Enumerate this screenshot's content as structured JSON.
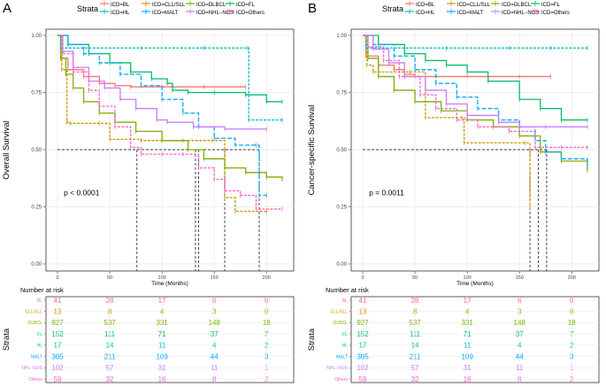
{
  "panels": [
    {
      "letter": "A",
      "ylabel": "Overall Survival",
      "pvalue": "p < 0.0001",
      "series": [
        {
          "key": "BL",
          "values": [
            [
              0,
              1
            ],
            [
              3,
              0.9
            ],
            [
              10,
              0.85
            ],
            [
              25,
              0.82
            ],
            [
              40,
              0.79
            ],
            [
              55,
              0.78
            ],
            [
              70,
              0.775
            ],
            [
              100,
              0.775
            ],
            [
              140,
              0.775
            ],
            [
              180,
              0.775
            ]
          ]
        },
        {
          "key": "CLL/SLL",
          "values": [
            [
              0,
              1
            ],
            [
              4,
              0.85
            ],
            [
              9,
              0.62
            ],
            [
              12,
              0.615
            ],
            [
              40,
              0.615
            ],
            [
              50,
              0.545
            ],
            [
              80,
              0.54
            ],
            [
              120,
              0.54
            ],
            [
              148,
              0.54
            ],
            [
              160,
              0.29
            ],
            [
              170,
              0.23
            ],
            [
              200,
              0.23
            ]
          ]
        },
        {
          "key": "DLBCL",
          "values": [
            [
              0,
              1
            ],
            [
              3,
              0.9
            ],
            [
              8,
              0.83
            ],
            [
              15,
              0.77
            ],
            [
              25,
              0.71
            ],
            [
              40,
              0.66
            ],
            [
              55,
              0.62
            ],
            [
              75,
              0.58
            ],
            [
              100,
              0.54
            ],
            [
              125,
              0.5
            ],
            [
              140,
              0.46
            ],
            [
              160,
              0.42
            ],
            [
              180,
              0.4
            ],
            [
              200,
              0.38
            ],
            [
              215,
              0.37
            ]
          ]
        },
        {
          "key": "FL",
          "values": [
            [
              0,
              1
            ],
            [
              10,
              0.96
            ],
            [
              30,
              0.92
            ],
            [
              50,
              0.88
            ],
            [
              70,
              0.84
            ],
            [
              90,
              0.81
            ],
            [
              105,
              0.79
            ],
            [
              110,
              0.76
            ],
            [
              125,
              0.75
            ],
            [
              150,
              0.75
            ],
            [
              180,
              0.74
            ],
            [
              200,
              0.71
            ],
            [
              215,
              0.71
            ]
          ]
        },
        {
          "key": "HL",
          "values": [
            [
              0,
              1
            ],
            [
              3,
              0.945
            ],
            [
              80,
              0.945
            ],
            [
              140,
              0.945
            ],
            [
              182,
              0.945
            ],
            [
              183,
              0.63
            ],
            [
              215,
              0.63
            ]
          ]
        },
        {
          "key": "MALT",
          "values": [
            [
              0,
              1
            ],
            [
              10,
              0.96
            ],
            [
              25,
              0.92
            ],
            [
              40,
              0.88
            ],
            [
              60,
              0.83
            ],
            [
              80,
              0.78
            ],
            [
              100,
              0.72
            ],
            [
              120,
              0.66
            ],
            [
              135,
              0.6
            ],
            [
              150,
              0.55
            ],
            [
              170,
              0.52
            ],
            [
              190,
              0.52
            ],
            [
              193,
              0.3
            ],
            [
              200,
              0.3
            ]
          ]
        },
        {
          "key": "NHL-NOS",
          "values": [
            [
              0,
              1
            ],
            [
              5,
              0.93
            ],
            [
              15,
              0.86
            ],
            [
              30,
              0.8
            ],
            [
              45,
              0.77
            ],
            [
              60,
              0.72
            ],
            [
              75,
              0.68
            ],
            [
              95,
              0.63
            ],
            [
              105,
              0.62
            ],
            [
              130,
              0.6
            ],
            [
              160,
              0.59
            ],
            [
              200,
              0.59
            ]
          ]
        },
        {
          "key": "Others",
          "values": [
            [
              0,
              1
            ],
            [
              5,
              0.92
            ],
            [
              15,
              0.84
            ],
            [
              30,
              0.76
            ],
            [
              40,
              0.69
            ],
            [
              55,
              0.6
            ],
            [
              70,
              0.51
            ],
            [
              80,
              0.48
            ],
            [
              100,
              0.48
            ],
            [
              120,
              0.48
            ],
            [
              135,
              0.42
            ],
            [
              150,
              0.37
            ],
            [
              160,
              0.32
            ],
            [
              175,
              0.3
            ],
            [
              190,
              0.24
            ],
            [
              215,
              0.24
            ]
          ]
        }
      ],
      "median_lines": [
        76,
        132,
        135,
        160,
        193
      ]
    },
    {
      "letter": "B",
      "ylabel": "Cancer-specific Survival",
      "pvalue": "p = 0.0011",
      "series": [
        {
          "key": "BL",
          "values": [
            [
              0,
              1
            ],
            [
              3,
              0.91
            ],
            [
              15,
              0.87
            ],
            [
              30,
              0.85
            ],
            [
              40,
              0.83
            ],
            [
              50,
              0.82
            ],
            [
              100,
              0.82
            ],
            [
              150,
              0.82
            ],
            [
              180,
              0.82
            ]
          ]
        },
        {
          "key": "CLL/SLL",
          "values": [
            [
              0,
              1
            ],
            [
              4,
              0.87
            ],
            [
              10,
              0.84
            ],
            [
              45,
              0.84
            ],
            [
              60,
              0.64
            ],
            [
              95,
              0.64
            ],
            [
              97,
              0.53
            ],
            [
              155,
              0.53
            ],
            [
              160,
              0.25
            ]
          ]
        },
        {
          "key": "DLBCL",
          "values": [
            [
              0,
              1
            ],
            [
              5,
              0.9
            ],
            [
              15,
              0.82
            ],
            [
              30,
              0.76
            ],
            [
              50,
              0.71
            ],
            [
              75,
              0.67
            ],
            [
              100,
              0.63
            ],
            [
              125,
              0.6
            ],
            [
              150,
              0.56
            ],
            [
              170,
              0.49
            ],
            [
              190,
              0.45
            ],
            [
              215,
              0.41
            ]
          ]
        },
        {
          "key": "FL",
          "values": [
            [
              0,
              1
            ],
            [
              15,
              0.96
            ],
            [
              40,
              0.92
            ],
            [
              60,
              0.89
            ],
            [
              80,
              0.87
            ],
            [
              100,
              0.84
            ],
            [
              120,
              0.8
            ],
            [
              150,
              0.72
            ],
            [
              170,
              0.68
            ],
            [
              190,
              0.63
            ],
            [
              215,
              0.63
            ]
          ]
        },
        {
          "key": "HL",
          "values": [
            [
              0,
              1
            ],
            [
              3,
              0.945
            ],
            [
              80,
              0.945
            ],
            [
              140,
              0.945
            ],
            [
              180,
              0.945
            ],
            [
              215,
              0.945
            ]
          ]
        },
        {
          "key": "MALT",
          "values": [
            [
              0,
              1
            ],
            [
              10,
              0.96
            ],
            [
              30,
              0.91
            ],
            [
              50,
              0.85
            ],
            [
              70,
              0.79
            ],
            [
              90,
              0.73
            ],
            [
              110,
              0.68
            ],
            [
              130,
              0.63
            ],
            [
              150,
              0.6
            ],
            [
              165,
              0.54
            ],
            [
              175,
              0.49
            ],
            [
              190,
              0.46
            ],
            [
              215,
              0.44
            ]
          ]
        },
        {
          "key": "NHL-NOS",
          "values": [
            [
              0,
              1
            ],
            [
              10,
              0.94
            ],
            [
              25,
              0.88
            ],
            [
              40,
              0.82
            ],
            [
              60,
              0.76
            ],
            [
              80,
              0.7
            ],
            [
              100,
              0.65
            ],
            [
              130,
              0.62
            ],
            [
              150,
              0.6
            ],
            [
              175,
              0.6
            ],
            [
              215,
              0.6
            ]
          ]
        },
        {
          "key": "Others",
          "values": [
            [
              0,
              1
            ],
            [
              5,
              0.95
            ],
            [
              20,
              0.89
            ],
            [
              35,
              0.82
            ],
            [
              55,
              0.74
            ],
            [
              70,
              0.68
            ],
            [
              90,
              0.63
            ],
            [
              110,
              0.6
            ],
            [
              140,
              0.58
            ],
            [
              165,
              0.51
            ],
            [
              190,
              0.51
            ],
            [
              215,
              0.51
            ]
          ]
        }
      ],
      "median_lines": [
        160,
        168,
        176
      ]
    }
  ],
  "chart_data": {
    "type": "line",
    "xlabel": "Time (Months)",
    "ylabel": [
      "Overall Survival",
      "Cancer-specific Survival"
    ],
    "xlim": [
      0,
      215
    ],
    "ylim": [
      0,
      1
    ],
    "x_ticks": [
      "0",
      "50",
      "100",
      "150",
      "200"
    ],
    "y_ticks": [
      "0.00",
      "0.25",
      "0.50",
      "0.75",
      "1.00"
    ],
    "risk_times": [
      0,
      50,
      100,
      150,
      200
    ],
    "reference_line_y": 0.5
  },
  "legend": {
    "title": "Strata",
    "items": [
      {
        "key": "BL",
        "label": "ICD=BL",
        "color": "#F8766D"
      },
      {
        "key": "CLL/SLL",
        "label": "ICD=CLL/SLL",
        "color": "#CD9600"
      },
      {
        "key": "DLBCL",
        "label": "ICD=DLBCL",
        "color": "#7CAE00"
      },
      {
        "key": "FL",
        "label": "ICD=FL",
        "color": "#00BE67"
      },
      {
        "key": "HL",
        "label": "ICD=HL",
        "color": "#00BFC4"
      },
      {
        "key": "MALT",
        "label": "ICD=MALT",
        "color": "#00A9FF"
      },
      {
        "key": "NHL-NOS",
        "label": "ICD=NHL−NOS",
        "color": "#C77CFF"
      },
      {
        "key": "Others",
        "label": "ICD=Others",
        "color": "#FF61CC"
      }
    ]
  },
  "risk_table": {
    "title": "Number at risk",
    "axis_label": "Strata",
    "xlabel": "Time (Months)",
    "rows": [
      {
        "key": "BL",
        "label": "BL",
        "values": [
          "41",
          "28",
          "17",
          "6",
          "0"
        ]
      },
      {
        "key": "CLL/SLL",
        "label": "CLL/SLL",
        "values": [
          "13",
          "8",
          "4",
          "3",
          "0"
        ]
      },
      {
        "key": "DLBCL",
        "label": "DLBCL",
        "values": [
          "927",
          "537",
          "331",
          "148",
          "18"
        ]
      },
      {
        "key": "FL",
        "label": "FL",
        "values": [
          "152",
          "111",
          "71",
          "37",
          "7"
        ]
      },
      {
        "key": "HL",
        "label": "HL",
        "values": [
          "17",
          "14",
          "11",
          "4",
          "2"
        ]
      },
      {
        "key": "MALT",
        "label": "MALT",
        "values": [
          "305",
          "211",
          "109",
          "44",
          "3"
        ]
      },
      {
        "key": "NHL-NOS",
        "label": "NHL−NOS",
        "values": [
          "102",
          "57",
          "31",
          "11",
          "1"
        ]
      },
      {
        "key": "Others",
        "label": "Others",
        "values": [
          "59",
          "32",
          "16",
          "8",
          "2"
        ]
      }
    ]
  }
}
